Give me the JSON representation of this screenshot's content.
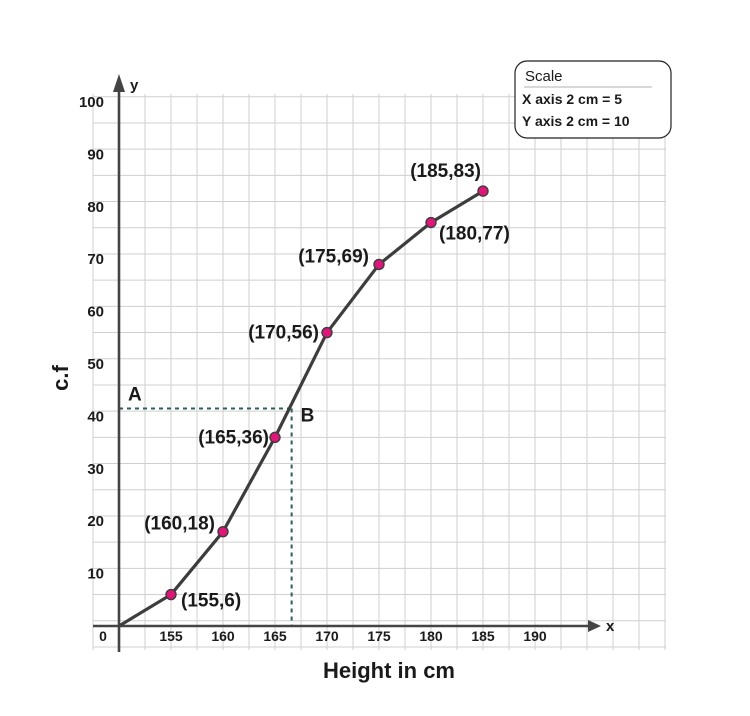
{
  "chart_data": {
    "type": "line",
    "xlabel": "Height in cm",
    "ylabel": "c.f",
    "x_axis_letter": "x",
    "y_axis_letter": "y",
    "origin_label": "0",
    "x_ticks": [
      "155",
      "160",
      "165",
      "170",
      "175",
      "180",
      "185",
      "190"
    ],
    "y_ticks": [
      "10",
      "20",
      "30",
      "40",
      "50",
      "60",
      "70",
      "80",
      "90",
      "100"
    ],
    "xlim": [
      150,
      195
    ],
    "ylim": [
      0,
      100
    ],
    "grid": true,
    "line_starts_at_origin": true,
    "points": [
      {
        "x": 155,
        "y": 6,
        "label": "(155,6)"
      },
      {
        "x": 160,
        "y": 18,
        "label": "(160,18)"
      },
      {
        "x": 165,
        "y": 36,
        "label": "(165,36)"
      },
      {
        "x": 170,
        "y": 56,
        "label": "(170,56)"
      },
      {
        "x": 175,
        "y": 69,
        "label": "(175,69)"
      },
      {
        "x": 180,
        "y": 77,
        "label": "(180,77)"
      },
      {
        "x": 185,
        "y": 83,
        "label": "(185,83)"
      }
    ],
    "median_guide": {
      "y": 41.5,
      "x": 166.6,
      "y_marker_label": "A",
      "curve_marker_label": "B"
    },
    "scale": {
      "title": "Scale",
      "lines": [
        "X axis 2 cm = 5",
        "Y axis 2 cm = 10"
      ]
    },
    "colors": {
      "line": "#3d3d3d",
      "point_fill": "#e0157a",
      "point_stroke": "#3d3d3d",
      "grid": "#cfcfcf",
      "axis": "#444444",
      "guide": "#2f5e63"
    }
  }
}
